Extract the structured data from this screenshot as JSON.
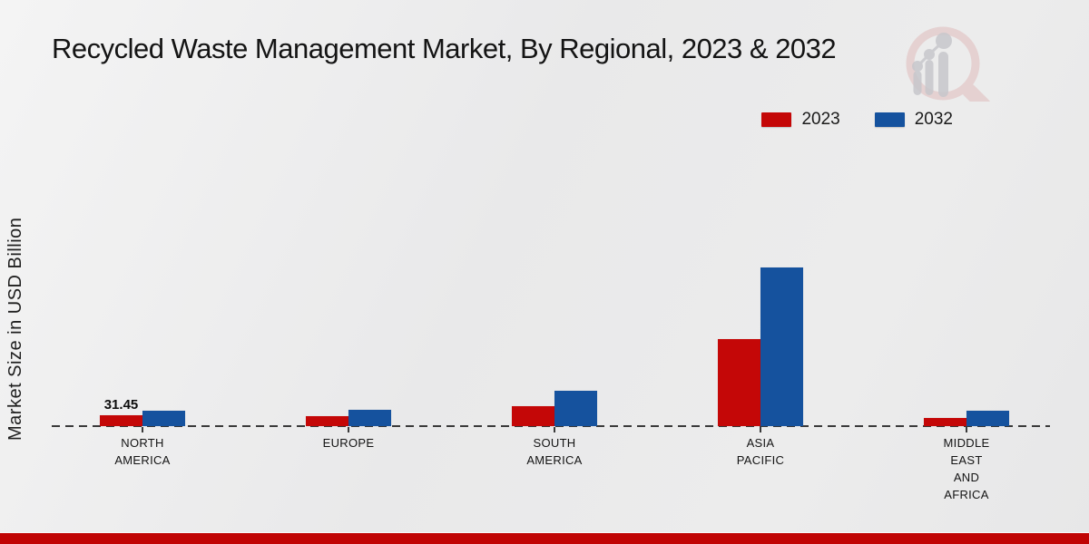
{
  "title": "Recycled Waste Management Market, By Regional, 2023 & 2032",
  "ylabel": "Market Size in USD Billion",
  "legend": [
    {
      "label": "2023",
      "color": "#c40707"
    },
    {
      "label": "2032",
      "color": "#15529e"
    }
  ],
  "colors": {
    "series_2023": "#c40707",
    "series_2032": "#15529e",
    "baseline": "#3a3a3a",
    "bottom_band": "#c00404",
    "background": "#ececec",
    "watermark_ring": "#e0bcbc",
    "watermark_bars": "#c7c7cc"
  },
  "chart_data": {
    "type": "bar",
    "categories": [
      "NORTH AMERICA",
      "EUROPE",
      "SOUTH AMERICA",
      "ASIA PACIFIC",
      "MIDDLE EAST AND AFRICA"
    ],
    "category_lines": [
      [
        "NORTH",
        "AMERICA"
      ],
      [
        "EUROPE"
      ],
      [
        "SOUTH",
        "AMERICA"
      ],
      [
        "ASIA",
        "PACIFIC"
      ],
      [
        "MIDDLE",
        "EAST",
        "AND",
        "AFRICA"
      ]
    ],
    "series": [
      {
        "name": "2023",
        "color": "#c40707",
        "values": [
          31.45,
          29.2,
          57.8,
          252.0,
          23.6
        ]
      },
      {
        "name": "2032",
        "color": "#15529e",
        "values": [
          45.1,
          47.2,
          102.2,
          458.5,
          44.8
        ]
      }
    ],
    "data_labels": [
      {
        "series": "2023",
        "category": "NORTH AMERICA",
        "text": "31.45"
      }
    ],
    "ylim": [
      0,
      500
    ],
    "grid": false,
    "y_axis_ticks_visible": false,
    "baseline_style": "dashed",
    "legend_position": "top-right"
  }
}
